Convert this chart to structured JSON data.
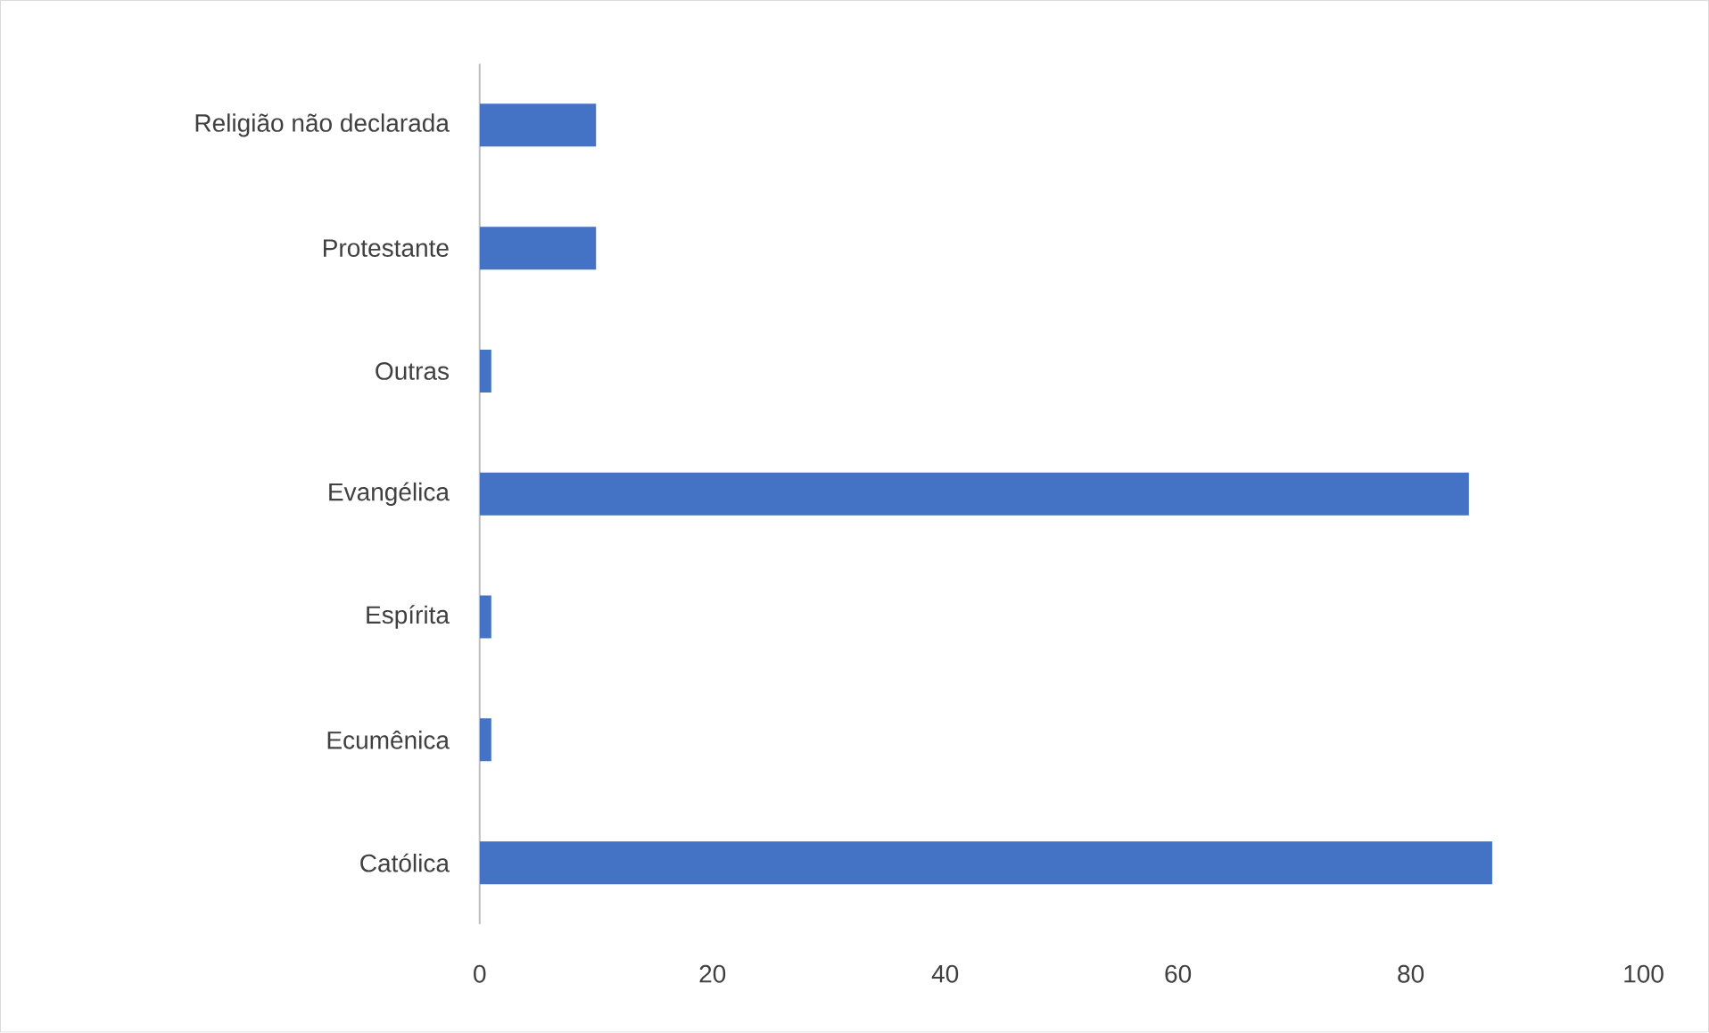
{
  "chart_data": {
    "type": "bar",
    "orientation": "horizontal",
    "categories": [
      "Religião não declarada",
      "Protestante",
      "Outras",
      "Evangélica",
      "Espírita",
      "Ecumênica",
      "Católica"
    ],
    "values": [
      10,
      10,
      1,
      85,
      1,
      1,
      87
    ],
    "color": "#4472c4",
    "xlim": [
      0,
      100
    ],
    "xticks": [
      0,
      20,
      40,
      60,
      80,
      100
    ]
  }
}
